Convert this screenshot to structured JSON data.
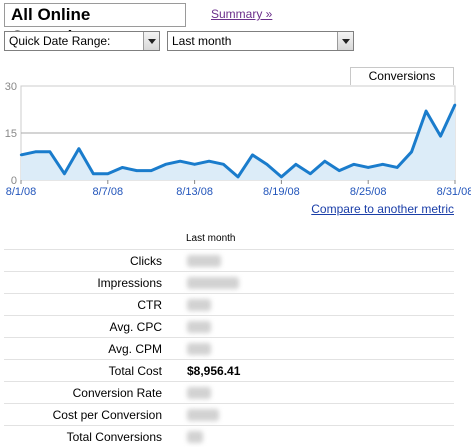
{
  "header": {
    "title": "All Online Campaigns",
    "summary_link": "Summary »"
  },
  "filters": {
    "date_range_label": "Quick Date Range:",
    "period_value": "Last month"
  },
  "legend": {
    "series_label": "Conversions"
  },
  "compare_link": "Compare to another metric",
  "chart_data": {
    "type": "area",
    "series": [
      {
        "name": "Conversions",
        "values": [
          8,
          9,
          9,
          2,
          10,
          2,
          2,
          4,
          3,
          3,
          5,
          6,
          5,
          6,
          5,
          1,
          8,
          5,
          1,
          5,
          2,
          6,
          3,
          5,
          4,
          5,
          4,
          9,
          22,
          14,
          24
        ]
      }
    ],
    "x_tick_labels": [
      "8/1/08",
      "8/7/08",
      "8/13/08",
      "8/19/08",
      "8/25/08",
      "8/31/08"
    ],
    "x_tick_indices": [
      0,
      6,
      12,
      18,
      24,
      30
    ],
    "y_ticks": [
      0,
      15,
      30
    ],
    "ylim": [
      0,
      30
    ],
    "grid": true,
    "colors": {
      "line": "#1a7ccc",
      "fill": "#dcecf8",
      "grid": "#cfcfcf",
      "axis_text": "#888888",
      "x_text": "#2255bb"
    }
  },
  "metrics": {
    "column_header": "Last month",
    "rows": [
      {
        "label": "Clicks",
        "value": "",
        "blurred": true
      },
      {
        "label": "Impressions",
        "value": "",
        "blurred": true
      },
      {
        "label": "CTR",
        "value": "",
        "blurred": true
      },
      {
        "label": "Avg. CPC",
        "value": "",
        "blurred": true
      },
      {
        "label": "Avg. CPM",
        "value": "",
        "blurred": true
      },
      {
        "label": "Total Cost",
        "value": "$8,956.41",
        "blurred": false
      },
      {
        "label": "Conversion Rate",
        "value": "",
        "blurred": true
      },
      {
        "label": "Cost per Conversion",
        "value": "",
        "blurred": true
      },
      {
        "label": "Total Conversions",
        "value": "",
        "blurred": true
      }
    ]
  }
}
